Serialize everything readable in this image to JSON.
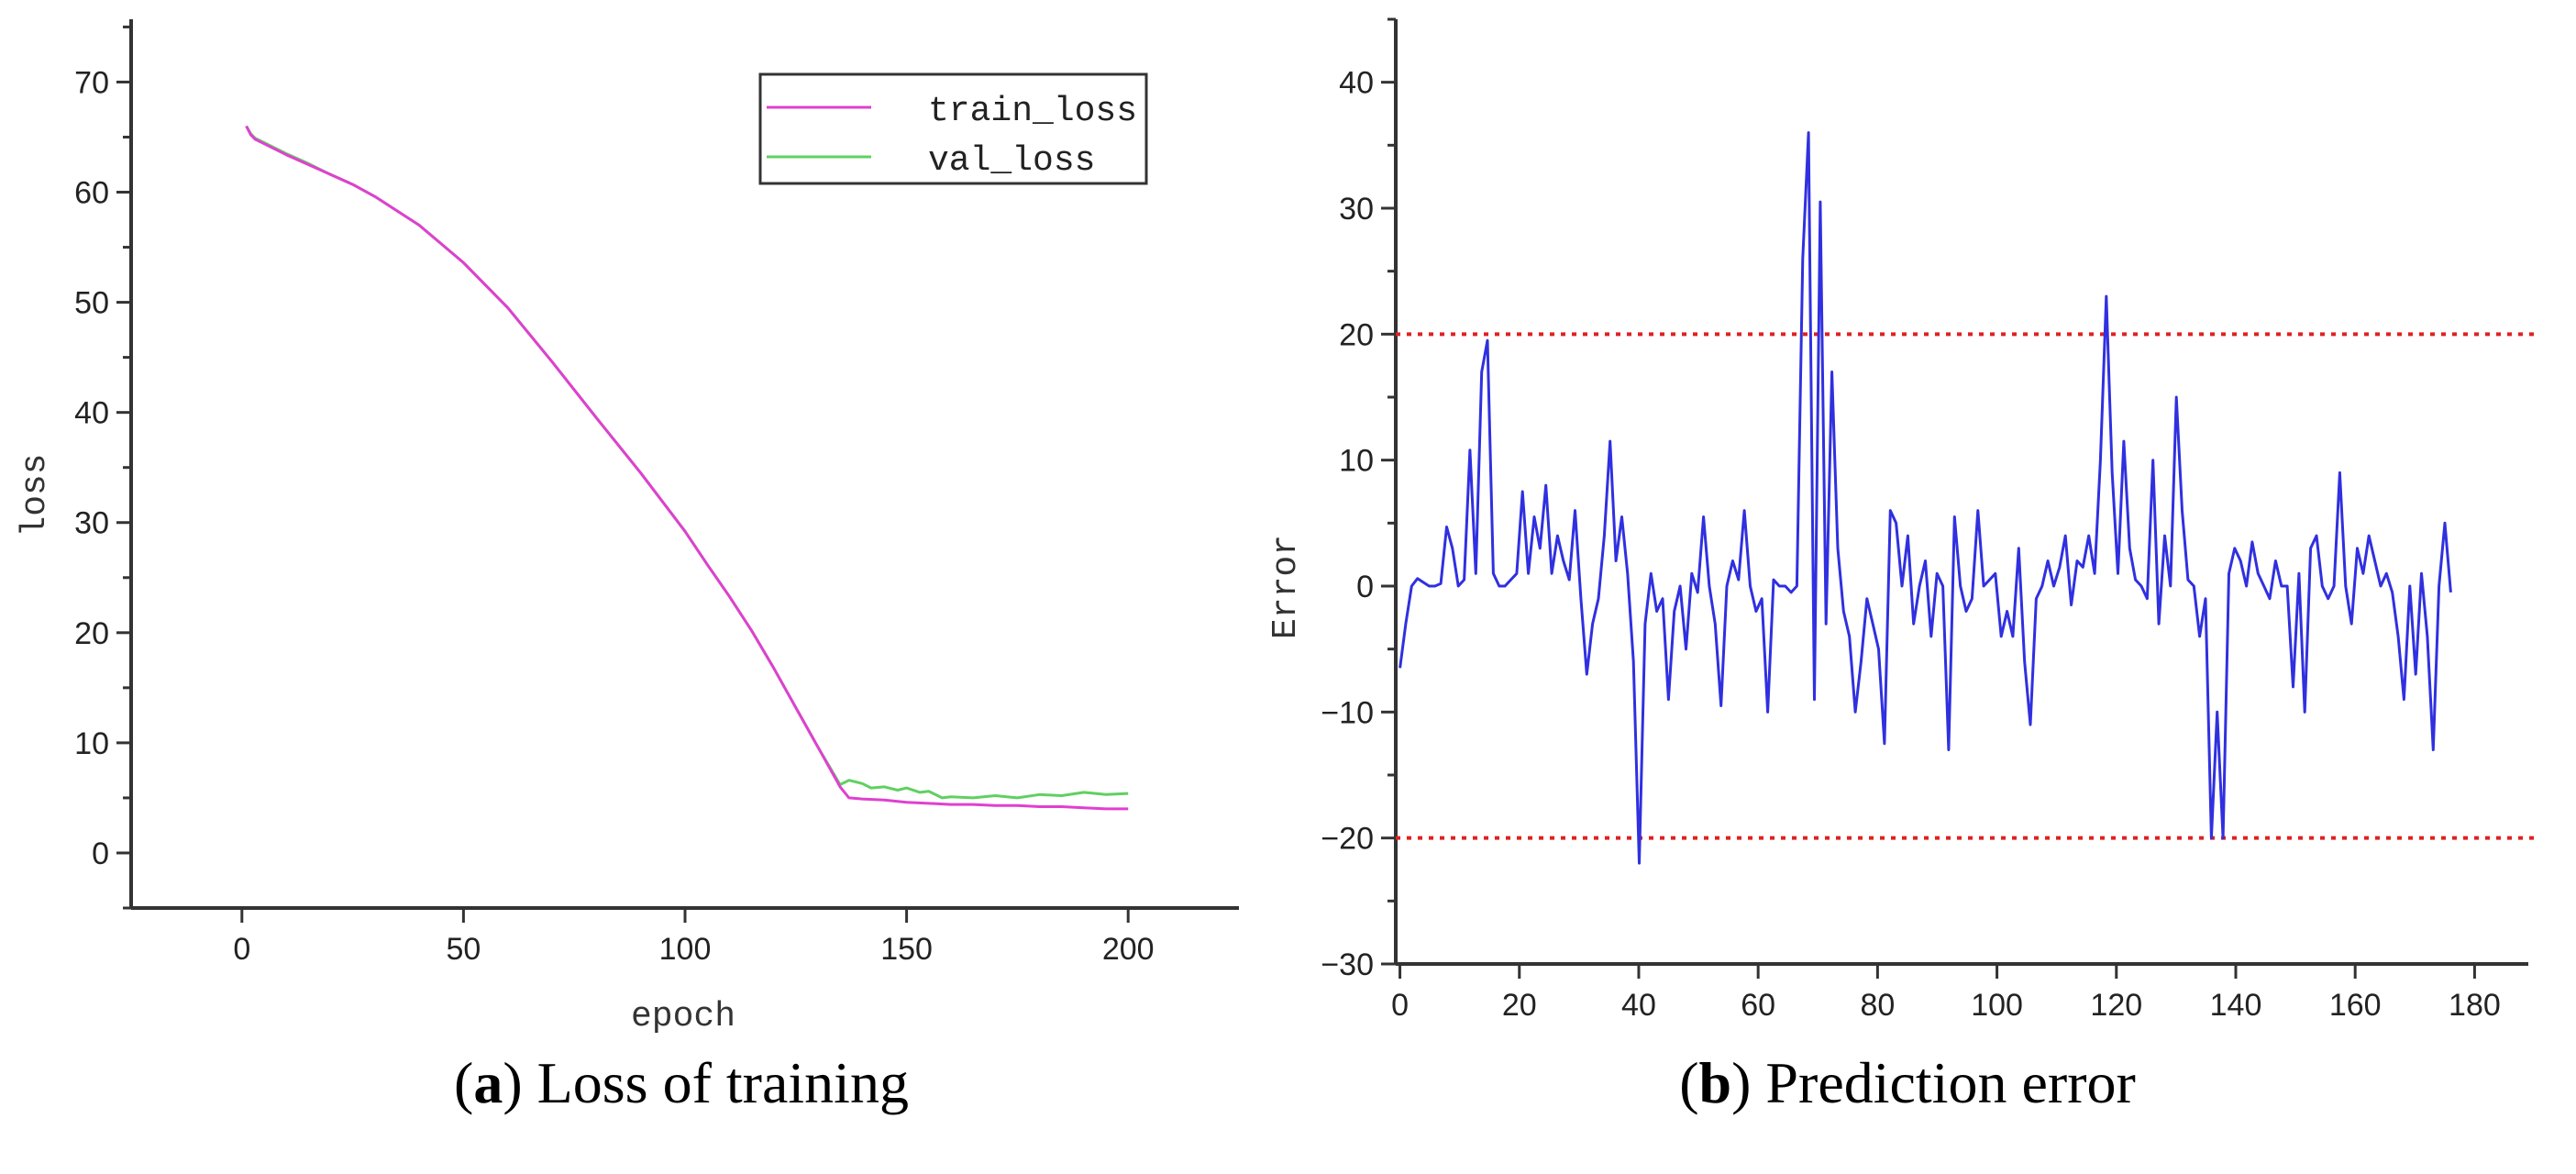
{
  "chart_data": [
    {
      "type": "line",
      "caption_letter": "a",
      "caption_text": "Loss of training",
      "xlabel": "epoch",
      "ylabel": "loss",
      "xlim": [
        -25,
        225
      ],
      "ylim": [
        -5,
        75.7
      ],
      "xticks": [
        0,
        50,
        100,
        150,
        200
      ],
      "yticks": [
        0,
        10,
        20,
        30,
        40,
        50,
        60,
        70
      ],
      "grid": false,
      "legend_position": "top-right",
      "series": [
        {
          "name": "train_loss",
          "color": "#e040d0",
          "x": [
            1,
            2,
            3,
            5,
            10,
            15,
            20,
            25,
            30,
            40,
            50,
            60,
            70,
            80,
            90,
            100,
            105,
            110,
            115,
            120,
            125,
            130,
            135,
            137,
            140,
            145,
            150,
            155,
            160,
            165,
            170,
            175,
            180,
            185,
            190,
            195,
            200
          ],
          "y": [
            66,
            65.2,
            64.8,
            64.4,
            63.4,
            62.5,
            61.6,
            60.7,
            59.6,
            57.0,
            53.6,
            49.5,
            44.6,
            39.5,
            34.5,
            29.2,
            26.2,
            23.3,
            20.2,
            16.8,
            13.2,
            9.6,
            6.0,
            5.0,
            4.9,
            4.8,
            4.6,
            4.5,
            4.4,
            4.4,
            4.3,
            4.3,
            4.2,
            4.2,
            4.1,
            4.0,
            4.0
          ]
        },
        {
          "name": "val_loss",
          "color": "#60d060",
          "x": [
            1,
            2,
            3,
            5,
            10,
            15,
            20,
            25,
            30,
            40,
            50,
            60,
            70,
            80,
            90,
            100,
            105,
            110,
            115,
            120,
            125,
            130,
            135,
            137,
            140,
            142,
            145,
            148,
            150,
            153,
            155,
            158,
            160,
            165,
            170,
            175,
            180,
            185,
            190,
            195,
            200
          ],
          "y": [
            66,
            65.3,
            64.9,
            64.5,
            63.5,
            62.6,
            61.6,
            60.7,
            59.6,
            57.0,
            53.6,
            49.5,
            44.6,
            39.5,
            34.5,
            29.2,
            26.2,
            23.3,
            20.2,
            16.8,
            13.2,
            9.6,
            6.2,
            6.6,
            6.3,
            5.9,
            6.0,
            5.7,
            5.9,
            5.5,
            5.6,
            5.0,
            5.1,
            5.0,
            5.2,
            5.0,
            5.3,
            5.2,
            5.5,
            5.3,
            5.4
          ]
        }
      ]
    },
    {
      "type": "line",
      "caption_letter": "b",
      "caption_text": "Prediction error",
      "xlabel": "",
      "ylabel": "Error",
      "xlim": [
        -0.7,
        189
      ],
      "ylim": [
        -30,
        45
      ],
      "xticks": [
        0,
        20,
        40,
        60,
        80,
        100,
        120,
        140,
        160,
        180
      ],
      "yticks": [
        -30,
        -20,
        -10,
        0,
        10,
        20,
        30,
        40
      ],
      "yticklabels": [
        "−30",
        "−20",
        "−10",
        "0",
        "10",
        "20",
        "30",
        "40"
      ],
      "grid": false,
      "x_end": 176,
      "thresholds": [
        20,
        -20
      ],
      "threshold_color": "#e02020",
      "series": [
        {
          "name": "error",
          "color": "#3030e0",
          "y": [
            -6.5,
            -3,
            0,
            0.6,
            0.3,
            0,
            0,
            0.2,
            4.7,
            3,
            0,
            0.5,
            10.8,
            1,
            17,
            19.5,
            1,
            0,
            0,
            0.5,
            1,
            7.5,
            1,
            5.5,
            3,
            8,
            1,
            4,
            2,
            0.5,
            6,
            -1,
            -7,
            -3,
            -1,
            4,
            11.5,
            2,
            5.5,
            1,
            -6,
            -22,
            -3,
            1,
            -2,
            -1,
            -9,
            -2,
            0,
            -5,
            1,
            -0.5,
            5.5,
            0,
            -3,
            -9.5,
            0,
            2,
            0.5,
            6,
            0,
            -2,
            -1,
            -10,
            0.5,
            0,
            0,
            -0.5,
            0,
            26,
            36,
            -9,
            30.5,
            -3,
            17,
            3,
            -2,
            -4,
            -10,
            -6,
            -1,
            -3,
            -5,
            -12.5,
            6,
            5,
            0,
            4,
            -3,
            0,
            2,
            -4,
            1,
            0,
            -13,
            5.5,
            0,
            -2,
            -1,
            6,
            0,
            0.5,
            1,
            -4,
            -2,
            -4,
            3,
            -6,
            -11,
            -1,
            0,
            2,
            0,
            1.5,
            4,
            -1.5,
            2,
            1.5,
            4,
            1,
            10,
            23,
            9,
            1,
            11.5,
            3,
            0.5,
            0,
            -1,
            10,
            -3,
            4,
            0,
            15,
            6,
            0.5,
            0,
            -4,
            -1,
            -20,
            -10,
            -20,
            1,
            3,
            2,
            0,
            3.5,
            1,
            0,
            -1,
            2,
            0,
            0,
            -8,
            1,
            -10,
            3,
            4,
            0,
            -1,
            0,
            9,
            0,
            -3,
            3,
            1,
            4,
            2,
            0,
            1,
            -0.5,
            -4,
            -9,
            0,
            -7,
            1,
            -4,
            -13,
            0,
            5,
            -0.5
          ]
        }
      ]
    }
  ]
}
